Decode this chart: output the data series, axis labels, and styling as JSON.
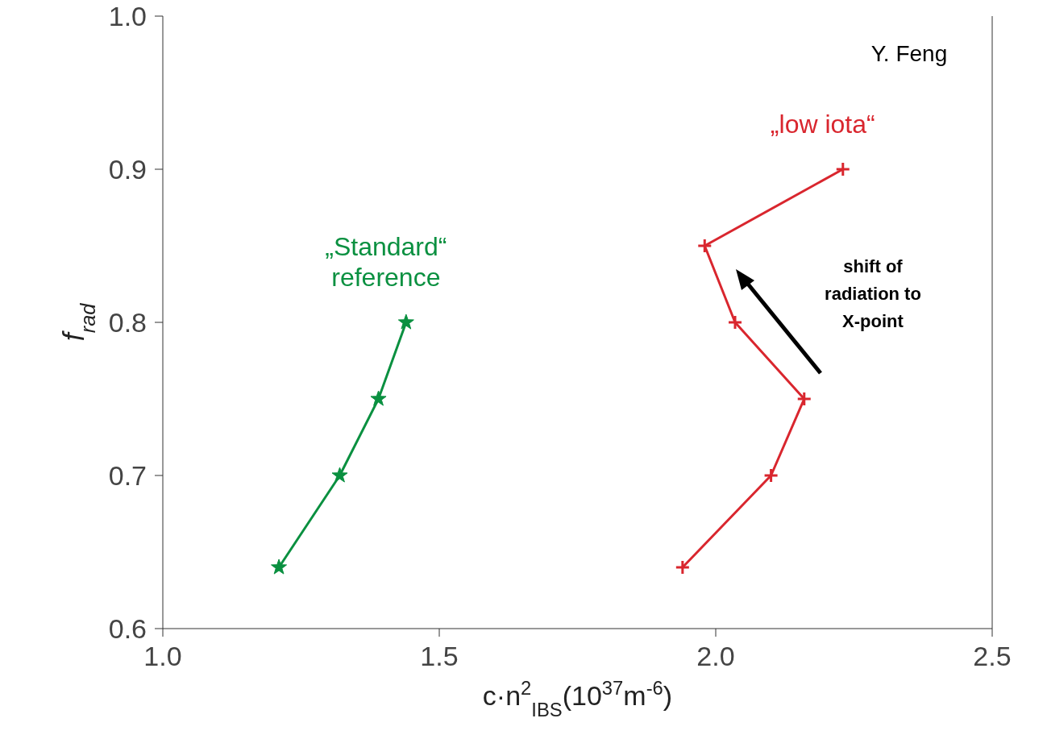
{
  "chart_data": {
    "type": "line",
    "xlabel": "c·n$^{2}$$_{IBS}$(10$^{37}$m$^{-6}$)",
    "ylabel": "f$_{rad}$",
    "xlim": [
      1.0,
      2.5
    ],
    "xticks": [
      {
        "value": 1.0,
        "label": "1.0"
      },
      {
        "value": 1.5,
        "label": "1.5"
      },
      {
        "value": 2.0,
        "label": "2.0"
      },
      {
        "value": 2.5,
        "label": "2.5"
      }
    ],
    "ylim": [
      0.6,
      1.0
    ],
    "yticks": [
      {
        "value": 0.6,
        "label": "0.6"
      },
      {
        "value": 0.7,
        "label": "0.7"
      },
      {
        "value": 0.8,
        "label": "0.8"
      },
      {
        "value": 0.9,
        "label": "0.9"
      },
      {
        "value": 1.0,
        "label": "1.0"
      }
    ],
    "grid": false,
    "legend": false,
    "series": [
      {
        "name": "„Standard“ reference",
        "color": "#0a9040",
        "marker": "star",
        "x": [
          1.21,
          1.32,
          1.39,
          1.44
        ],
        "values": [
          0.64,
          0.7,
          0.75,
          0.8
        ]
      },
      {
        "name": "„low iota“",
        "color": "#d9262e",
        "marker": "cross",
        "x": [
          1.94,
          2.1,
          2.16,
          2.035,
          1.98,
          2.23
        ],
        "values": [
          0.64,
          0.7,
          0.75,
          0.8,
          0.85,
          0.9
        ]
      }
    ],
    "annotations": [
      "shift of radiation to X-point",
      "Y. Feng"
    ]
  }
}
